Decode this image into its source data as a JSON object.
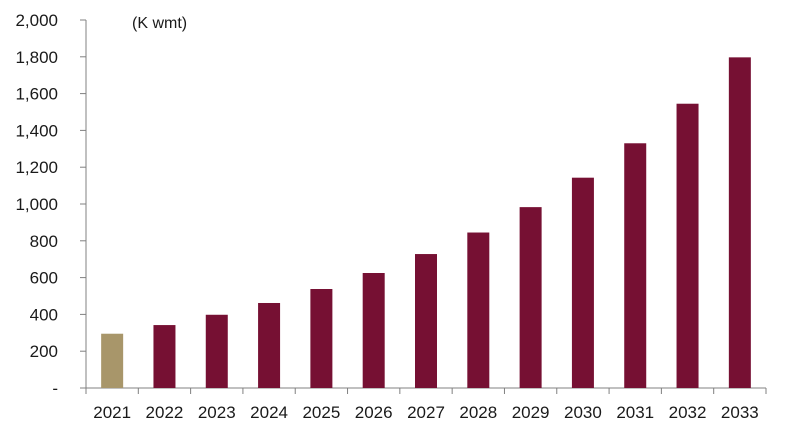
{
  "chart_data": {
    "type": "bar",
    "title": "",
    "unit_label": "(K wmt)",
    "xlabel": "",
    "ylabel": "",
    "categories": [
      "2021",
      "2022",
      "2023",
      "2024",
      "2025",
      "2026",
      "2027",
      "2028",
      "2029",
      "2030",
      "2031",
      "2032",
      "2033"
    ],
    "values": [
      295,
      342,
      398,
      462,
      538,
      625,
      728,
      845,
      983,
      1143,
      1330,
      1545,
      1797
    ],
    "ylim": [
      0,
      2000
    ],
    "yticks": [
      0,
      200,
      400,
      600,
      800,
      1000,
      1200,
      1400,
      1600,
      1800,
      2000
    ],
    "ytick_labels": [
      "-",
      "200",
      "400",
      "600",
      "800",
      "1,000",
      "1,200",
      "1,400",
      "1,600",
      "1,800",
      "2,000"
    ],
    "grid": false,
    "legend": "none",
    "colors": {
      "actual": "#A8966A",
      "forecast": "#761033",
      "axis": "#808080"
    },
    "highlight_index": 0
  }
}
